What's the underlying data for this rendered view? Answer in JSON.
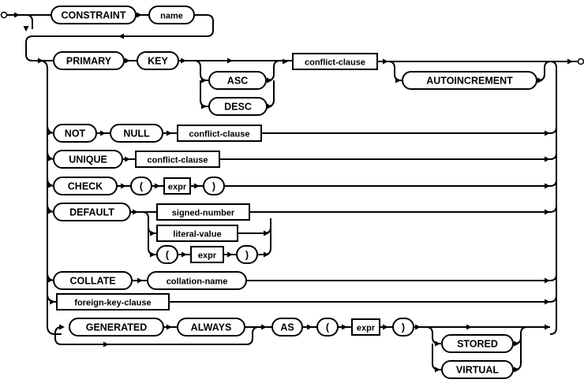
{
  "diagram": {
    "type": "railroad-syntax-diagram",
    "colors": {
      "stroke": "#000000",
      "background": "#ffffff"
    },
    "nodes": {
      "constraint": {
        "label": "CONSTRAINT",
        "kind": "terminal"
      },
      "name": {
        "label": "name",
        "kind": "terminal"
      },
      "primary": {
        "label": "PRIMARY",
        "kind": "terminal"
      },
      "key": {
        "label": "KEY",
        "kind": "terminal"
      },
      "asc": {
        "label": "ASC",
        "kind": "terminal"
      },
      "desc": {
        "label": "DESC",
        "kind": "terminal"
      },
      "pk_conflict": {
        "label": "conflict-clause",
        "kind": "nonterminal"
      },
      "autoincrement": {
        "label": "AUTOINCREMENT",
        "kind": "terminal"
      },
      "not": {
        "label": "NOT",
        "kind": "terminal"
      },
      "null": {
        "label": "NULL",
        "kind": "terminal"
      },
      "nn_conflict": {
        "label": "conflict-clause",
        "kind": "nonterminal"
      },
      "unique": {
        "label": "UNIQUE",
        "kind": "terminal"
      },
      "uq_conflict": {
        "label": "conflict-clause",
        "kind": "nonterminal"
      },
      "check": {
        "label": "CHECK",
        "kind": "terminal"
      },
      "check_lparen": {
        "label": "(",
        "kind": "terminal"
      },
      "check_expr": {
        "label": "expr",
        "kind": "nonterminal"
      },
      "check_rparen": {
        "label": ")",
        "kind": "terminal"
      },
      "default": {
        "label": "DEFAULT",
        "kind": "terminal"
      },
      "signed_number": {
        "label": "signed-number",
        "kind": "nonterminal"
      },
      "literal_value": {
        "label": "literal-value",
        "kind": "nonterminal"
      },
      "def_lparen": {
        "label": "(",
        "kind": "terminal"
      },
      "def_expr": {
        "label": "expr",
        "kind": "nonterminal"
      },
      "def_rparen": {
        "label": ")",
        "kind": "terminal"
      },
      "collate": {
        "label": "COLLATE",
        "kind": "terminal"
      },
      "collation_name": {
        "label": "collation-name",
        "kind": "terminal"
      },
      "foreign_key_clause": {
        "label": "foreign-key-clause",
        "kind": "nonterminal"
      },
      "generated": {
        "label": "GENERATED",
        "kind": "terminal"
      },
      "always": {
        "label": "ALWAYS",
        "kind": "terminal"
      },
      "as": {
        "label": "AS",
        "kind": "terminal"
      },
      "gen_lparen": {
        "label": "(",
        "kind": "terminal"
      },
      "gen_expr": {
        "label": "expr",
        "kind": "nonterminal"
      },
      "gen_rparen": {
        "label": ")",
        "kind": "terminal"
      },
      "stored": {
        "label": "STORED",
        "kind": "terminal"
      },
      "virtual": {
        "label": "VIRTUAL",
        "kind": "terminal"
      }
    }
  }
}
